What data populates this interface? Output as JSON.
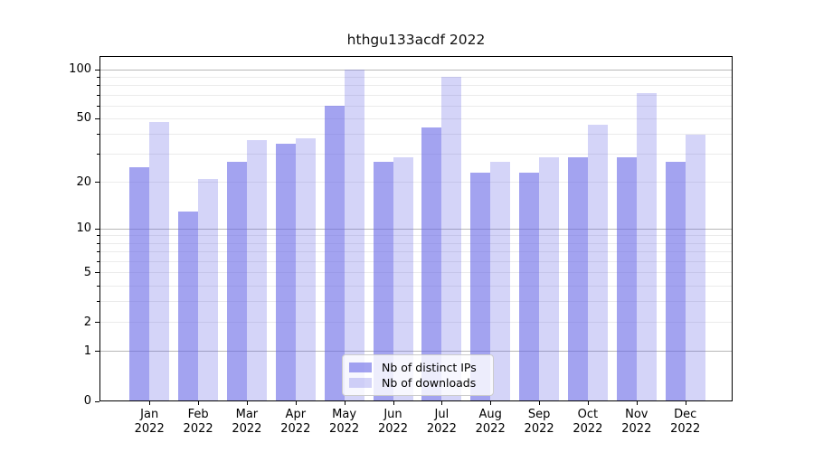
{
  "title": "hthgu133acdf 2022",
  "chart_data": {
    "type": "bar",
    "title": "hthgu133acdf 2022",
    "categories": [
      "Jan",
      "Feb",
      "Mar",
      "Apr",
      "May",
      "Jun",
      "Jul",
      "Aug",
      "Sep",
      "Oct",
      "Nov",
      "Dec"
    ],
    "year": "2022",
    "series": [
      {
        "name": "Nb of distinct IPs",
        "color": "rgba(102,102,230,0.6)",
        "values": [
          25,
          13,
          27,
          35,
          60,
          27,
          44,
          23,
          23,
          29,
          29,
          27
        ]
      },
      {
        "name": "Nb of downloads",
        "color": "rgba(102,102,230,0.28)",
        "values": [
          48,
          21,
          37,
          38,
          100,
          29,
          90,
          27,
          29,
          46,
          72,
          40
        ]
      }
    ],
    "y_scale": "log1p",
    "ylim": [
      0,
      121
    ],
    "y_ticks": [
      0,
      1,
      2,
      5,
      10,
      20,
      50,
      100
    ],
    "y_tick_labels": [
      "0",
      "1",
      "2",
      "5",
      "10",
      "20",
      "50",
      "100"
    ],
    "y_minor_ticks": [
      3,
      4,
      6,
      7,
      8,
      9,
      30,
      40,
      60,
      70,
      80,
      90
    ],
    "grid": "horizontal",
    "grid_major_at": [
      1,
      10,
      100
    ],
    "legend_position": "lower center",
    "xlabel": "",
    "ylabel": ""
  },
  "legend": {
    "items": [
      {
        "label": "Nb of distinct IPs"
      },
      {
        "label": "Nb of downloads"
      }
    ]
  },
  "colors": {
    "bar_base": "#6666e6",
    "grid_major": "#b8b8b8",
    "grid_minor": "#ebebeb",
    "spine": "#000000",
    "background": "#ffffff"
  }
}
